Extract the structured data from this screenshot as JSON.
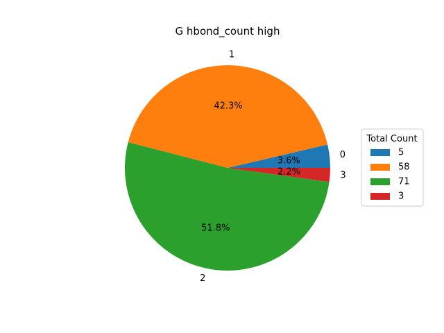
{
  "chart_data": {
    "type": "pie",
    "title": "G hbond_count high",
    "categories": [
      "0",
      "1",
      "2",
      "3"
    ],
    "values": [
      5,
      58,
      71,
      3
    ],
    "percent_labels": [
      "3.6%",
      "42.3%",
      "51.8%",
      "2.2%"
    ],
    "colors": [
      "#1f77b4",
      "#ff7f0e",
      "#2ca02c",
      "#d62728"
    ],
    "start_angle_deg": 0,
    "direction": "counterclockwise",
    "legend": {
      "title": "Total Count",
      "entries": [
        "5",
        "58",
        "71",
        "3"
      ],
      "placement": "right"
    }
  }
}
